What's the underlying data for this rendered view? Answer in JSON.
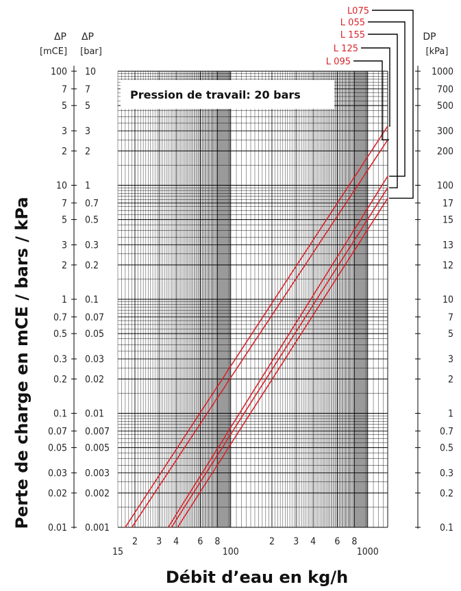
{
  "chart_data": {
    "type": "line",
    "title": "",
    "annotation": "Pression de travail: 20 bars",
    "xlabel": "Débit d’eau en kg/h",
    "ylabel": "Perte de charge en mCE / bars / kPa",
    "x_scale": "log",
    "y_scale": "log",
    "xlim": [
      15,
      1400
    ],
    "ylim_mCE": [
      0.01,
      100
    ],
    "grid": true,
    "x_tick_labels": [
      "15",
      "2",
      "3",
      "4",
      "6",
      "8",
      "100",
      "2",
      "3",
      "4",
      "6",
      "8",
      "1000"
    ],
    "y_axes": [
      {
        "name": "ΔP",
        "unit": "[mCE]",
        "tick_labels": [
          "100",
          "7",
          "5",
          "3",
          "2",
          "10",
          "7",
          "5",
          "3",
          "2",
          "1",
          "0.7",
          "0.5",
          "0.3",
          "0.2",
          "0.1",
          "0.07",
          "0.05",
          "0.03",
          "0.02",
          "0.01"
        ]
      },
      {
        "name": "ΔP",
        "unit": "[bar]",
        "tick_labels": [
          "10",
          "7",
          "5",
          "3",
          "2",
          "1",
          "0.7",
          "0.5",
          "0.3",
          "0.2",
          "0.1",
          "0.07",
          "0.05",
          "0.03",
          "0.02",
          "0.01",
          "0.007",
          "0.005",
          "0.003",
          "0.002",
          "0.001"
        ]
      },
      {
        "name": "DP",
        "unit": "[kPa]",
        "tick_labels": [
          "1000",
          "700",
          "500",
          "300",
          "200",
          "100",
          "17",
          "15",
          "13",
          "12",
          "10",
          "7",
          "5",
          "3",
          "2",
          "1",
          "0.7",
          "0.5",
          "0.3",
          "0.2",
          "0.1"
        ]
      }
    ],
    "series": [
      {
        "name": "L075",
        "color": "#d8232a",
        "x": [
          17,
          1400
        ],
        "y": [
          0.01,
          33
        ]
      },
      {
        "name": "L 055",
        "color": "#d8232a",
        "x": [
          19,
          1400
        ],
        "y": [
          0.01,
          25
        ]
      },
      {
        "name": "L 155",
        "color": "#d8232a",
        "x": [
          35,
          1400
        ],
        "y": [
          0.01,
          12
        ]
      },
      {
        "name": "L 125",
        "color": "#d8232a",
        "x": [
          37,
          1400
        ],
        "y": [
          0.01,
          9.5
        ]
      },
      {
        "name": "L 095",
        "color": "#d8232a",
        "x": [
          41,
          1400
        ],
        "y": [
          0.01,
          7.7
        ]
      }
    ]
  }
}
